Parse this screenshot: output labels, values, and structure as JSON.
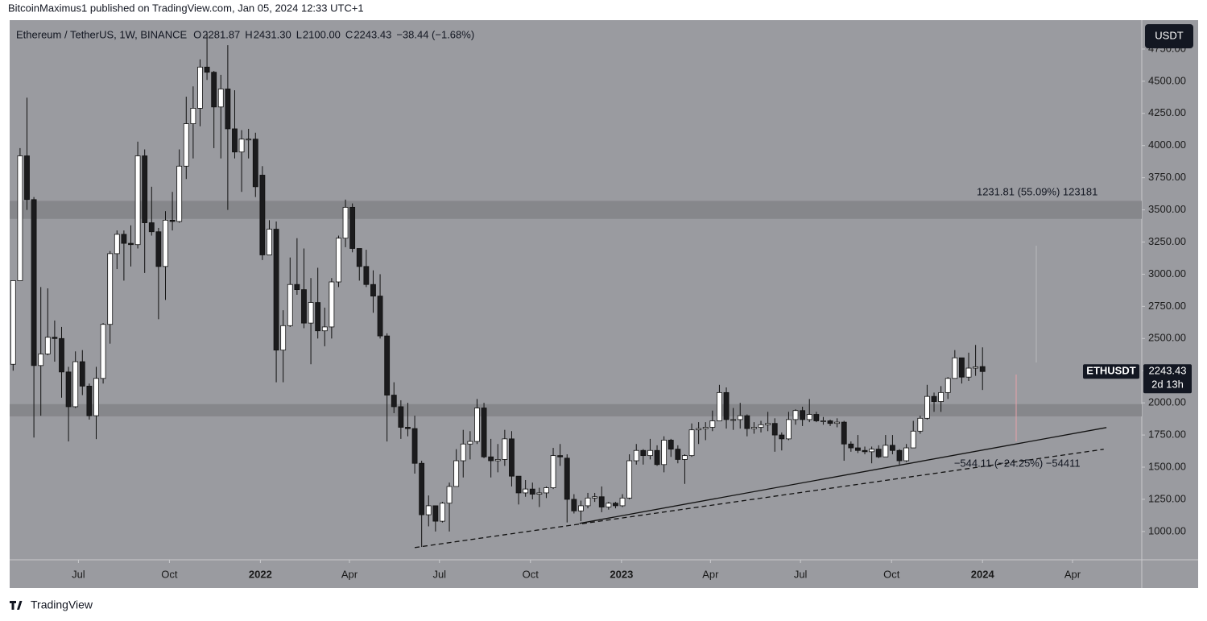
{
  "header": {
    "publisher": "BitcoinMaximus1 published on TradingView.com, Jan 05, 2024 12:33 UTC+1"
  },
  "chart_data": {
    "type": "candlestick",
    "title": "Ethereum / TetherUS, 1W, BINANCE",
    "ohlc_letters": [
      "O",
      "H",
      "L",
      "C"
    ],
    "ohlc_labels": [
      "2281.87",
      "2431.30",
      "2100.00",
      "2243.43"
    ],
    "change": "−38.44 (−1.68%)",
    "currency": "USDT",
    "symbol": "ETHUSDT",
    "countdown": "2d 13h",
    "colors": {
      "up": "#ffffff",
      "down": "#1b1b1d",
      "wick": "#111111",
      "zone": "#86878b",
      "line": "#111111"
    },
    "candles": [
      [
        2300,
        2950,
        2250,
        2950
      ],
      [
        2950,
        3980,
        2950,
        3920
      ],
      [
        3920,
        4372,
        3500,
        3580
      ],
      [
        3580,
        3600,
        1730,
        2290
      ],
      [
        2290,
        2900,
        1900,
        2380
      ],
      [
        2380,
        2890,
        2370,
        2510
      ],
      [
        2510,
        2640,
        2320,
        2500
      ],
      [
        2500,
        2590,
        2040,
        2240
      ],
      [
        2240,
        2280,
        1700,
        1970
      ],
      [
        1970,
        2400,
        1960,
        2320
      ],
      [
        2320,
        2410,
        2060,
        2130
      ],
      [
        2130,
        2150,
        1870,
        1900
      ],
      [
        1900,
        2280,
        1718,
        2190
      ],
      [
        2190,
        2620,
        2150,
        2610
      ],
      [
        2610,
        3180,
        2460,
        3160
      ],
      [
        3160,
        3340,
        3040,
        3310
      ],
      [
        3310,
        3340,
        2950,
        3240
      ],
      [
        3240,
        3380,
        3060,
        3230
      ],
      [
        3230,
        4030,
        3200,
        3920
      ],
      [
        3920,
        3970,
        3010,
        3400
      ],
      [
        3400,
        3680,
        3300,
        3330
      ],
      [
        3330,
        3360,
        2650,
        3060
      ],
      [
        3060,
        3490,
        2800,
        3420
      ],
      [
        3420,
        3640,
        3340,
        3410
      ],
      [
        3410,
        3970,
        3400,
        3840
      ],
      [
        3840,
        4380,
        3740,
        4170
      ],
      [
        4170,
        4460,
        3900,
        4290
      ],
      [
        4290,
        4670,
        4150,
        4610
      ],
      [
        4610,
        4870,
        4510,
        4570
      ],
      [
        4570,
        4580,
        3980,
        4300
      ],
      [
        4300,
        4550,
        3900,
        4440
      ],
      [
        4440,
        4780,
        3500,
        4130
      ],
      [
        4130,
        4430,
        3900,
        3950
      ],
      [
        3950,
        4120,
        3640,
        4050
      ],
      [
        4050,
        4130,
        3900,
        4050
      ],
      [
        4050,
        4100,
        3600,
        3680
      ],
      [
        3770,
        3840,
        3110,
        3150
      ],
      [
        3150,
        3420,
        3160,
        3350
      ],
      [
        3350,
        3410,
        2160,
        2410
      ],
      [
        2410,
        2720,
        2160,
        2600
      ],
      [
        2600,
        3130,
        2590,
        2920
      ],
      [
        2920,
        3280,
        2840,
        2880
      ],
      [
        2880,
        3200,
        2580,
        2620
      ],
      [
        2620,
        2970,
        2300,
        2780
      ],
      [
        2780,
        3050,
        2500,
        2560
      ],
      [
        2560,
        2740,
        2440,
        2590
      ],
      [
        2590,
        2970,
        2500,
        2940
      ],
      [
        2940,
        3300,
        2900,
        3280
      ],
      [
        3280,
        3580,
        3210,
        3520
      ],
      [
        3520,
        3550,
        3170,
        3200
      ],
      [
        3200,
        3200,
        2950,
        3060
      ],
      [
        3060,
        3190,
        2900,
        2920
      ],
      [
        2920,
        3030,
        2700,
        2830
      ],
      [
        2830,
        3000,
        2500,
        2520
      ],
      [
        2520,
        2540,
        1700,
        2060
      ],
      [
        2060,
        2160,
        1920,
        1970
      ],
      [
        1970,
        2020,
        1720,
        1810
      ],
      [
        1810,
        2000,
        1740,
        1800
      ],
      [
        1800,
        1900,
        1450,
        1530
      ],
      [
        1530,
        1550,
        880,
        1130
      ],
      [
        1130,
        1280,
        1040,
        1200
      ],
      [
        1200,
        1200,
        1000,
        1080
      ],
      [
        1080,
        1230,
        1070,
        1220
      ],
      [
        1220,
        1380,
        1000,
        1350
      ],
      [
        1350,
        1640,
        1350,
        1550
      ],
      [
        1550,
        1790,
        1420,
        1680
      ],
      [
        1680,
        1780,
        1560,
        1700
      ],
      [
        1700,
        2030,
        1680,
        1960
      ],
      [
        1960,
        2000,
        1570,
        1580
      ],
      [
        1580,
        1720,
        1420,
        1550
      ],
      [
        1550,
        1680,
        1460,
        1560
      ],
      [
        1560,
        1790,
        1510,
        1720
      ],
      [
        1720,
        1780,
        1350,
        1430
      ],
      [
        1430,
        1430,
        1210,
        1300
      ],
      [
        1300,
        1400,
        1270,
        1330
      ],
      [
        1330,
        1380,
        1250,
        1290
      ],
      [
        1290,
        1340,
        1190,
        1300
      ],
      [
        1300,
        1350,
        1260,
        1340
      ],
      [
        1340,
        1650,
        1330,
        1590
      ],
      [
        1590,
        1680,
        1510,
        1580
      ],
      [
        1570,
        1600,
        1070,
        1250
      ],
      [
        1250,
        1290,
        1140,
        1160
      ],
      [
        1160,
        1240,
        1080,
        1200
      ],
      [
        1200,
        1300,
        1180,
        1260
      ],
      [
        1260,
        1300,
        1230,
        1270
      ],
      [
        1270,
        1350,
        1150,
        1190
      ],
      [
        1190,
        1230,
        1170,
        1220
      ],
      [
        1220,
        1230,
        1180,
        1200
      ],
      [
        1200,
        1290,
        1190,
        1260
      ],
      [
        1260,
        1600,
        1250,
        1550
      ],
      [
        1550,
        1680,
        1520,
        1630
      ],
      [
        1630,
        1640,
        1520,
        1590
      ],
      [
        1590,
        1720,
        1560,
        1630
      ],
      [
        1630,
        1670,
        1510,
        1520
      ],
      [
        1520,
        1740,
        1460,
        1710
      ],
      [
        1710,
        1720,
        1580,
        1640
      ],
      [
        1640,
        1670,
        1530,
        1560
      ],
      [
        1560,
        1600,
        1370,
        1590
      ],
      [
        1590,
        1840,
        1580,
        1790
      ],
      [
        1790,
        1850,
        1680,
        1800
      ],
      [
        1800,
        1850,
        1710,
        1810
      ],
      [
        1810,
        1940,
        1780,
        1860
      ],
      [
        1860,
        2140,
        1860,
        2080
      ],
      [
        2080,
        2120,
        1800,
        1870
      ],
      [
        1870,
        1960,
        1790,
        1870
      ],
      [
        1870,
        2000,
        1800,
        1900
      ],
      [
        1900,
        1910,
        1740,
        1800
      ],
      [
        1800,
        1850,
        1760,
        1810
      ],
      [
        1810,
        1860,
        1770,
        1830
      ],
      [
        1830,
        1930,
        1780,
        1840
      ],
      [
        1840,
        1880,
        1620,
        1750
      ],
      [
        1750,
        1770,
        1630,
        1720
      ],
      [
        1720,
        1930,
        1710,
        1870
      ],
      [
        1870,
        1950,
        1830,
        1940
      ],
      [
        1940,
        1970,
        1820,
        1870
      ],
      [
        1870,
        2030,
        1850,
        1910
      ],
      [
        1910,
        1930,
        1850,
        1860
      ],
      [
        1860,
        1890,
        1830,
        1860
      ],
      [
        1860,
        1870,
        1820,
        1840
      ],
      [
        1840,
        1880,
        1810,
        1850
      ],
      [
        1850,
        1860,
        1550,
        1680
      ],
      [
        1680,
        1700,
        1620,
        1650
      ],
      [
        1650,
        1750,
        1610,
        1630
      ],
      [
        1630,
        1660,
        1600,
        1620
      ],
      [
        1620,
        1660,
        1530,
        1640
      ],
      [
        1640,
        1670,
        1570,
        1580
      ],
      [
        1580,
        1750,
        1580,
        1670
      ],
      [
        1670,
        1750,
        1600,
        1630
      ],
      [
        1630,
        1640,
        1520,
        1550
      ],
      [
        1550,
        1680,
        1540,
        1650
      ],
      [
        1650,
        1860,
        1650,
        1780
      ],
      [
        1780,
        1900,
        1760,
        1880
      ],
      [
        1880,
        2140,
        1870,
        2050
      ],
      [
        2050,
        2080,
        1930,
        2010
      ],
      [
        2010,
        2130,
        1930,
        2080
      ],
      [
        2080,
        2200,
        2030,
        2190
      ],
      [
        2190,
        2410,
        2190,
        2350
      ],
      [
        2350,
        2350,
        2150,
        2200
      ],
      [
        2200,
        2390,
        2170,
        2270
      ],
      [
        2270,
        2450,
        2210,
        2280
      ],
      [
        2281.87,
        2431.3,
        2100,
        2243.43
      ]
    ],
    "xlim": [
      -0.5,
      163
    ],
    "xticks": [
      {
        "value": 9.43,
        "label": "Jul"
      },
      {
        "value": 22.57,
        "label": "Oct"
      },
      {
        "value": 35.71,
        "label": "2022"
      },
      {
        "value": 48.57,
        "label": "Apr"
      },
      {
        "value": 61.57,
        "label": "Jul"
      },
      {
        "value": 74.71,
        "label": "Oct"
      },
      {
        "value": 87.86,
        "label": "2023"
      },
      {
        "value": 100.71,
        "label": "Apr"
      },
      {
        "value": 113.71,
        "label": "Jul"
      },
      {
        "value": 126.86,
        "label": "Oct"
      },
      {
        "value": 140,
        "label": "2024"
      },
      {
        "value": 153,
        "label": "Apr"
      }
    ],
    "ylim": [
      780,
      4975
    ],
    "yticks": [
      {
        "value": 1000,
        "label": "1000.00"
      },
      {
        "value": 1250,
        "label": "1250.00"
      },
      {
        "value": 1500,
        "label": "1500.00"
      },
      {
        "value": 1750,
        "label": "1750.00"
      },
      {
        "value": 2000,
        "label": "2000.00"
      },
      {
        "value": 2250,
        "label": "2250.00"
      },
      {
        "value": 2500,
        "label": "2500.00"
      },
      {
        "value": 2750,
        "label": "2750.00"
      },
      {
        "value": 3000,
        "label": "3000.00"
      },
      {
        "value": 3250,
        "label": "3250.00"
      },
      {
        "value": 3500,
        "label": "3500.00"
      },
      {
        "value": 3750,
        "label": "3750.00"
      },
      {
        "value": 4000,
        "label": "4000.00"
      },
      {
        "value": 4250,
        "label": "4250.00"
      },
      {
        "value": 4500,
        "label": "4500.00"
      },
      {
        "value": 4750,
        "label": "4750.00"
      }
    ],
    "grid": false,
    "zones": [
      [
        3430,
        3570
      ],
      [
        1895,
        1990
      ]
    ],
    "trendlines": [
      {
        "style": "solid",
        "points": [
          [
            81.8,
            1063
          ],
          [
            157.9,
            1808
          ]
        ]
      },
      {
        "style": "dashed",
        "points": [
          [
            58,
            875
          ],
          [
            157.5,
            1639
          ]
        ]
      }
    ],
    "annotations": [
      {
        "text": "1231.81 (55.09%) 123181",
        "x": 147.9,
        "y": 3636
      },
      {
        "text": "−544.11 (−24.25%) −54411",
        "x": 145,
        "y": 1526
      }
    ]
  },
  "footer": {
    "brand": "TradingView"
  }
}
